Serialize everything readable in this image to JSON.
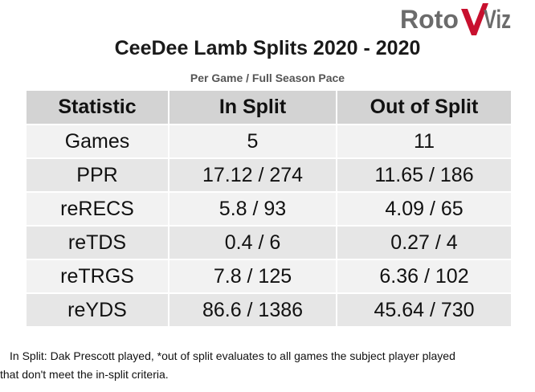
{
  "logo": {
    "text_part1": "Roto",
    "text_part2": "Viz"
  },
  "header": {
    "title": "CeeDee Lamb Splits 2020 - 2020",
    "subtitle": "Per Game / Full Season Pace"
  },
  "table": {
    "columns": [
      "Statistic",
      "In Split",
      "Out of Split"
    ],
    "rows": [
      {
        "statistic": "Games",
        "in_split": "5",
        "out_of_split": "11"
      },
      {
        "statistic": "PPR",
        "in_split": "17.12 / 274",
        "out_of_split": "11.65 / 186"
      },
      {
        "statistic": "reRECS",
        "in_split": "5.8 / 93",
        "out_of_split": "4.09 / 65"
      },
      {
        "statistic": "reTDS",
        "in_split": "0.4 / 6",
        "out_of_split": "0.27 / 4"
      },
      {
        "statistic": "reTRGS",
        "in_split": "7.8 / 125",
        "out_of_split": "6.36 / 102"
      },
      {
        "statistic": "reYDS",
        "in_split": "86.6 / 1386",
        "out_of_split": "45.64 / 730"
      }
    ]
  },
  "footnote": {
    "line1": "In Split: Dak Prescott played,  *out of split evaluates to all games the subject player played",
    "line2": "that don't meet the in-split criteria."
  },
  "colors": {
    "logo_gray": "#6b6b6b",
    "logo_red": "#c8102e",
    "header_bg": "#d3d3d3",
    "row_light": "#f2f2f2",
    "row_dark": "#e6e6e6"
  }
}
